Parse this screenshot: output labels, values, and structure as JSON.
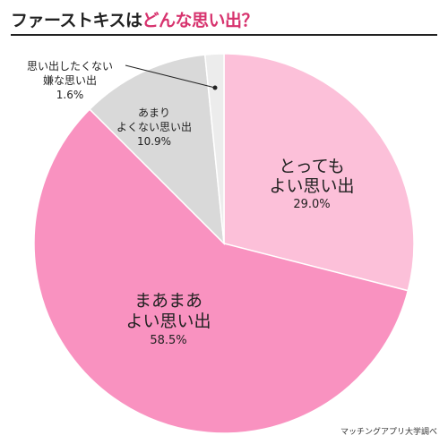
{
  "title": {
    "part1": "ファーストキスは",
    "part2": "どんな思い出？"
  },
  "chart_data": {
    "type": "pie",
    "title": "ファーストキスはどんな思い出？",
    "categories": [
      "とってもよい思い出",
      "まあまあよい思い出",
      "あまりよくない思い出",
      "思い出したくない嫌な思い出"
    ],
    "values": [
      29.0,
      58.5,
      10.9,
      1.6
    ],
    "unit": "%",
    "slices": [
      {
        "line1": "とっても",
        "line2": "よい思い出",
        "pct": "29.0%",
        "value": 29.0,
        "color": "#fcc0d9"
      },
      {
        "line1": "まあまあ",
        "line2": "よい思い出",
        "pct": "58.5%",
        "value": 58.5,
        "color": "#f992c0"
      },
      {
        "line1": "あまり",
        "line2": "よくない思い出",
        "pct": "10.9%",
        "value": 10.9,
        "color": "#d9d9d9"
      },
      {
        "line1": "思い出したくない",
        "line2": "嫌な思い出",
        "pct": "1.6%",
        "value": 1.6,
        "color": "#ececec"
      }
    ]
  },
  "source": "マッチングアプリ大学調べ"
}
